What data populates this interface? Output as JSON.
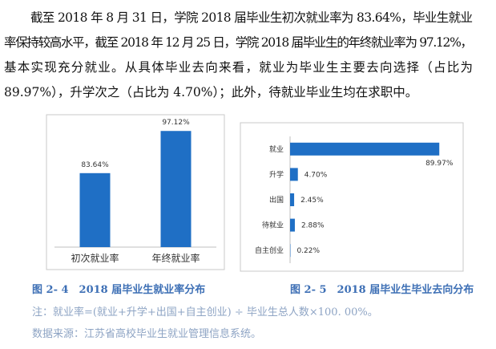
{
  "paragraph": {
    "lines": [
      "截至 2018 年 8 月 31 日，学院 2018 届毕业生初次就业率为 83.64%，毕业生就业",
      "率保持较高水平，截至 2018 年 12 月 25 日，学院 2018 届毕业生的年终就业率为 97.12%，",
      "基本实现充分就业。从具体毕业去向来看，就业为毕业生主要去向选择（占比为",
      "89.97%），升学次之（占比为 4.70%）；此外，待就业毕业生均在求职中。"
    ]
  },
  "chart_data": [
    {
      "type": "bar",
      "categories": [
        "初次就业率",
        "年终就业率"
      ],
      "values": [
        83.64,
        97.12
      ],
      "value_labels": [
        "83.64%",
        "97.12%"
      ],
      "color": "#1f6fc5",
      "ylim": [
        60,
        100
      ],
      "caption": "图 2- 4　2018 届毕业生就业率分布"
    },
    {
      "type": "barh",
      "categories": [
        "就业",
        "升学",
        "出国",
        "待就业",
        "自主创业"
      ],
      "values": [
        89.97,
        4.7,
        2.45,
        2.88,
        0.22
      ],
      "value_labels": [
        "89.97%",
        "4.70%",
        "2.45%",
        "2.88%",
        "0.22%"
      ],
      "color": "#1f6fc5",
      "xlim": [
        0,
        100
      ],
      "caption": "图 2- 5　2018 届毕业生毕业去向分布"
    }
  ],
  "notes": [
    "注：就业率=(就业+升学+出国+自主创业) ÷ 毕业生总人数×100. 00%。",
    "数据来源：江苏省高校毕业生就业管理信息系统。"
  ]
}
